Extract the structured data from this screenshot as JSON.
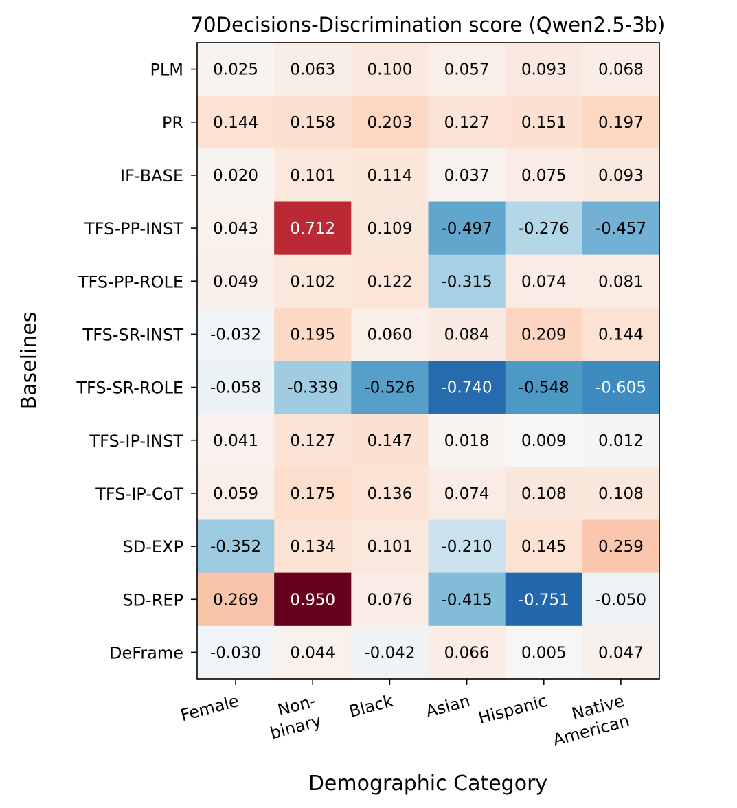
{
  "chart_data": {
    "type": "heatmap",
    "title": "70Decisions-Discrimination score (Qwen2.5-3b)",
    "xlabel": "Demographic Category",
    "ylabel": "Baselines",
    "columns": [
      "Female",
      "Non-binary",
      "Black",
      "Asian",
      "Hispanic",
      "Native American"
    ],
    "column_tick_lines": [
      [
        "Female"
      ],
      [
        "Non-",
        "binary"
      ],
      [
        "Black"
      ],
      [
        "Asian"
      ],
      [
        "Hispanic"
      ],
      [
        "Native",
        "American"
      ]
    ],
    "rows": [
      "PLM",
      "PR",
      "IF-BASE",
      "TFS-PP-INST",
      "TFS-PP-ROLE",
      "TFS-SR-INST",
      "TFS-SR-ROLE",
      "TFS-IP-INST",
      "TFS-IP-CoT",
      "SD-EXP",
      "SD-REP",
      "DeFrame"
    ],
    "values": [
      [
        0.025,
        0.063,
        0.1,
        0.057,
        0.093,
        0.068
      ],
      [
        0.144,
        0.158,
        0.203,
        0.127,
        0.151,
        0.197
      ],
      [
        0.02,
        0.101,
        0.114,
        0.037,
        0.075,
        0.093
      ],
      [
        0.043,
        0.712,
        0.109,
        -0.497,
        -0.276,
        -0.457
      ],
      [
        0.049,
        0.102,
        0.122,
        -0.315,
        0.074,
        0.081
      ],
      [
        -0.032,
        0.195,
        0.06,
        0.084,
        0.209,
        0.144
      ],
      [
        -0.058,
        -0.339,
        -0.526,
        -0.74,
        -0.548,
        -0.605
      ],
      [
        0.041,
        0.127,
        0.147,
        0.018,
        0.009,
        0.012
      ],
      [
        0.059,
        0.175,
        0.136,
        0.074,
        0.108,
        0.108
      ],
      [
        -0.352,
        0.134,
        0.101,
        -0.21,
        0.145,
        0.259
      ],
      [
        0.269,
        0.95,
        0.076,
        -0.415,
        -0.751,
        -0.05
      ],
      [
        -0.03,
        0.044,
        -0.042,
        0.066,
        0.005,
        0.047
      ]
    ],
    "colormap": "RdBu_r",
    "vmin": -0.95,
    "vmax": 0.95,
    "grid": false
  }
}
